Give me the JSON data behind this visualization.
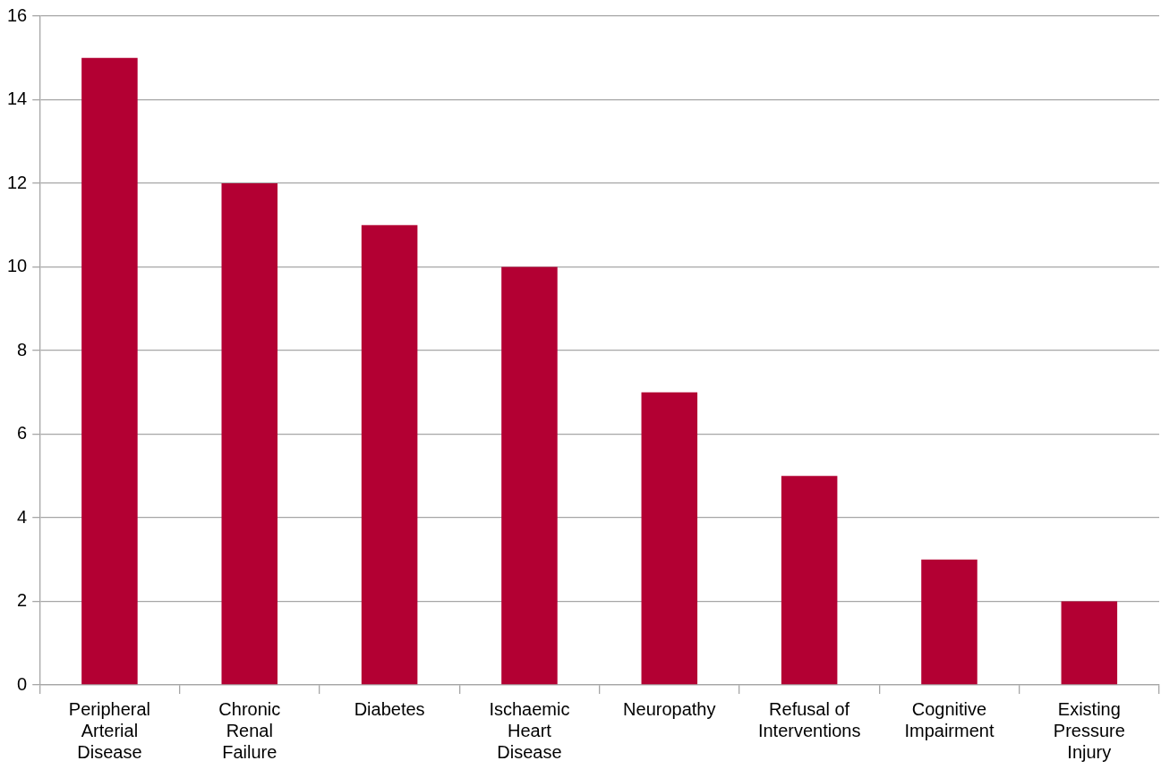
{
  "chart_data": {
    "type": "bar",
    "categories": [
      "Peripheral Arterial Disease",
      "Chronic Renal Failure",
      "Diabetes",
      "Ischaemic Heart Disease",
      "Neuropathy",
      "Refusal of Interventions",
      "Cognitive Impairment",
      "Existing Pressure Injury"
    ],
    "values": [
      15,
      12,
      11,
      10,
      7,
      5,
      3,
      2
    ],
    "color": "#b30033",
    "ylim": [
      0,
      16
    ],
    "yticks": [
      0,
      2,
      4,
      6,
      8,
      10,
      12,
      14,
      16
    ],
    "grid": "y",
    "legend": false
  }
}
